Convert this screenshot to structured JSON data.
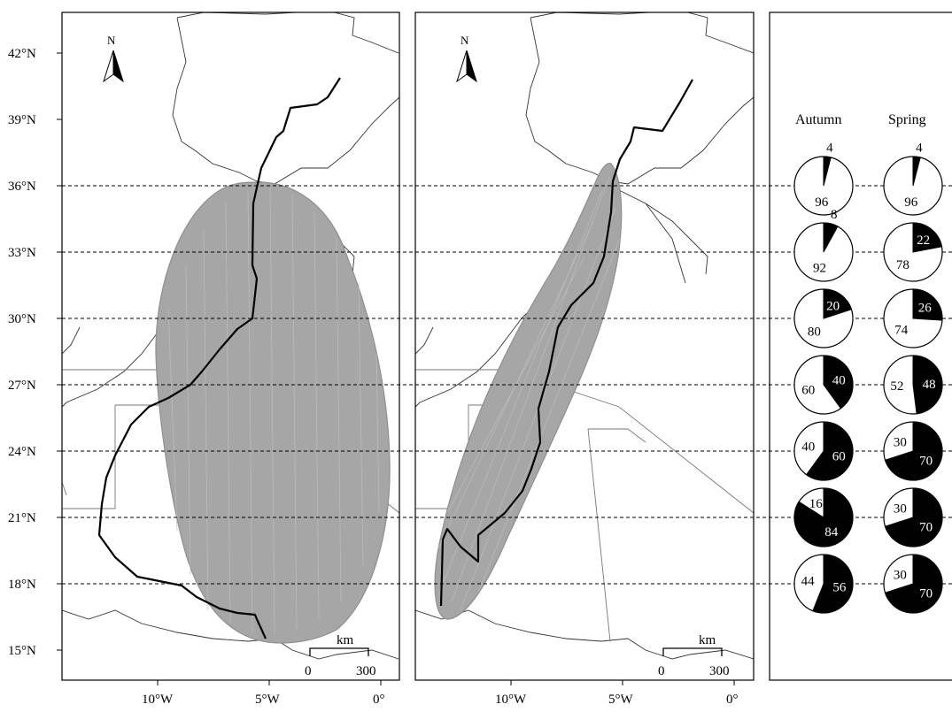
{
  "y_ticks": [
    "42°N",
    "39°N",
    "36°N",
    "33°N",
    "30°N",
    "27°N",
    "24°N",
    "21°N",
    "18°N",
    "15°N"
  ],
  "x_ticks": [
    "10°W",
    "5°W",
    "0°"
  ],
  "north_label": "N",
  "scalebar": {
    "unit": "km",
    "start": "0",
    "end": "300"
  },
  "pie_panel": {
    "columns": [
      "Autumn",
      "Spring"
    ],
    "latitudes": [
      "36°N",
      "33°N",
      "30°N",
      "27°N",
      "24°N",
      "21°N",
      "18°N"
    ],
    "autumn": [
      {
        "black": 4,
        "white": 96
      },
      {
        "black": 8,
        "white": 92
      },
      {
        "black": 20,
        "white": 80
      },
      {
        "black": 40,
        "white": 60
      },
      {
        "black": 60,
        "white": 40
      },
      {
        "black": 84,
        "white": 16
      },
      {
        "black": 56,
        "white": 44
      }
    ],
    "spring": [
      {
        "black": 4,
        "white": 96
      },
      {
        "black": 22,
        "white": 78
      },
      {
        "black": 26,
        "white": 74
      },
      {
        "black": 48,
        "white": 52
      },
      {
        "black": 70,
        "white": 30
      },
      {
        "black": 70,
        "white": 30
      },
      {
        "black": 70,
        "white": 30
      }
    ]
  },
  "colors": {
    "simulated_tracks": "#a6a6a6",
    "observed_track": "#000000",
    "pie_black": "#000000",
    "pie_white": "#ffffff"
  }
}
